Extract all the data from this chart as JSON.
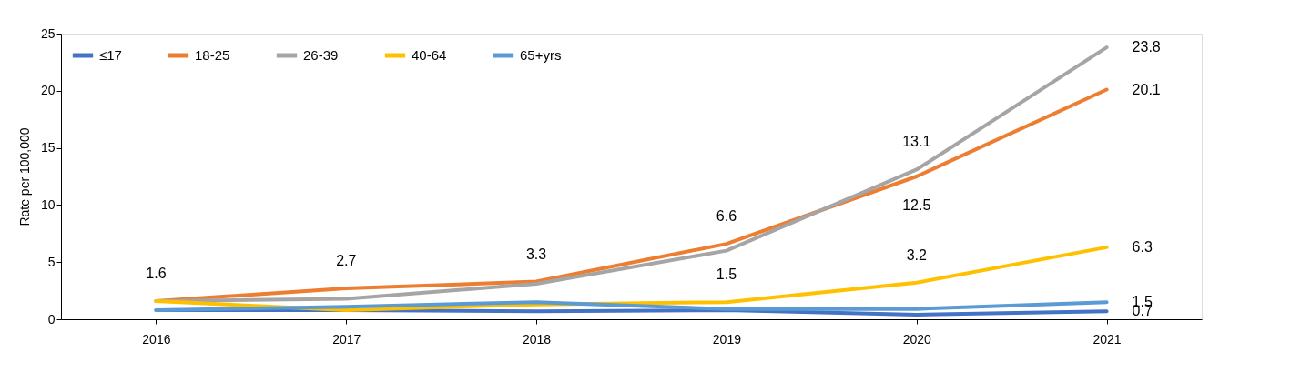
{
  "chart_data": {
    "type": "line",
    "ylabel": "Rate per 100,000",
    "categories": [
      "2016",
      "2017",
      "2018",
      "2019",
      "2020",
      "2021"
    ],
    "ylim": [
      0,
      25
    ],
    "yticks": [
      0,
      5,
      10,
      15,
      20,
      25
    ],
    "grid": false,
    "legend": "top left",
    "marker": "none",
    "line_style": "solid",
    "series": [
      {
        "name": "≤17",
        "color": "#4472c4",
        "values": [
          0.8,
          0.8,
          0.7,
          0.8,
          0.4,
          0.7
        ],
        "value_labels": [
          null,
          null,
          null,
          null,
          null,
          "0.7"
        ]
      },
      {
        "name": "18-25",
        "color": "#ed7d31",
        "values": [
          1.6,
          2.7,
          3.3,
          6.6,
          12.5,
          20.1
        ],
        "value_labels": [
          "1.6",
          "2.7",
          "3.3",
          "6.6",
          "12.5",
          "20.1"
        ]
      },
      {
        "name": "26-39",
        "color": "#a5a5a5",
        "values": [
          1.6,
          1.8,
          3.1,
          6.0,
          13.1,
          23.8
        ],
        "value_labels": [
          null,
          null,
          null,
          null,
          "13.1",
          "23.8"
        ]
      },
      {
        "name": "40-64",
        "color": "#ffc000",
        "values": [
          1.6,
          0.8,
          1.3,
          1.5,
          3.2,
          6.3
        ],
        "value_labels": [
          null,
          null,
          null,
          "1.5",
          "3.2",
          "6.3"
        ]
      },
      {
        "name": "65+yrs",
        "color": "#5b9bd5",
        "values": [
          0.8,
          1.1,
          1.5,
          0.9,
          0.9,
          1.5
        ],
        "value_labels": [
          null,
          null,
          null,
          null,
          null,
          "1.5"
        ]
      }
    ]
  }
}
